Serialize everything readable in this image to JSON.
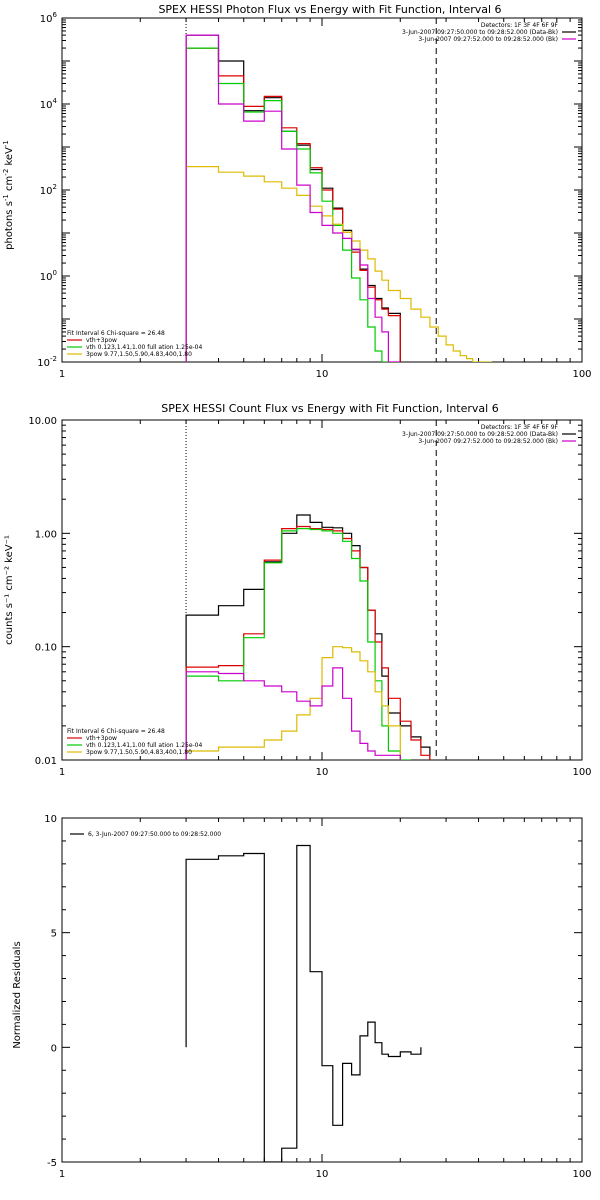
{
  "chart_data": [
    {
      "type": "line",
      "title": "SPEX HESSI Photon Flux vs Energy with Fit Function, Interval 6",
      "ylabel_parts": [
        "photons s",
        "-1",
        " cm",
        "-2",
        " keV",
        "-1"
      ],
      "xscale": "log",
      "yscale": "log",
      "xlim": [
        1,
        100
      ],
      "ylim": [
        0.01,
        1000000
      ],
      "x_ticks": [
        {
          "v": 1,
          "label": "1"
        },
        {
          "v": 10,
          "label": "10"
        },
        {
          "v": 100,
          "label": "100"
        }
      ],
      "y_ticks": [
        {
          "v": 0.01,
          "base": "10",
          "exp": "-2"
        },
        {
          "v": 1,
          "base": "10",
          "exp": "0"
        },
        {
          "v": 100,
          "base": "10",
          "exp": "2"
        },
        {
          "v": 10000,
          "base": "10",
          "exp": "4"
        },
        {
          "v": 1000000,
          "base": "10",
          "exp": "6"
        }
      ],
      "vlines": [
        {
          "x": 3,
          "style": "dotted"
        },
        {
          "x": 27.5,
          "style": "dashed"
        }
      ],
      "legend_topright": [
        {
          "text": "Detectors: 1F 3F 4F 6F 9F",
          "color": ""
        },
        {
          "text": "3-Jun-2007 09:27:50.000 to 09:28:52.000 (Data-Bk)",
          "color": "#000000"
        },
        {
          "text": "3-Jun-2007 09:27:52.000 to 09:28:52.000 (Bk)",
          "color": "#cc00cc"
        }
      ],
      "legend_bottomleft": [
        {
          "text": "Fit Interval 6   Chi-square = 26.48",
          "color": ""
        },
        {
          "text": "vth+3pow",
          "color": "#dd0000"
        },
        {
          "text": "vth 0.123,1.41,1.00  full ation 1.25e-04",
          "color": "#00cc00"
        },
        {
          "text": "3pow 9.77,1.50,5.90,4.83,400,1.80",
          "color": "#ddbb00"
        }
      ],
      "bin_edges": [
        3,
        4,
        5,
        6,
        7,
        8,
        9,
        10,
        11,
        12,
        13,
        14,
        15,
        16,
        17,
        18,
        20,
        22,
        24,
        26,
        28,
        30,
        32,
        34,
        36,
        38,
        40,
        45
      ],
      "series": [
        {
          "name": "Data-Bk",
          "color": "#000000",
          "values": [
            400000,
            100000,
            7000,
            14000,
            2300,
            1100,
            300,
            110,
            38,
            11.5,
            4.1,
            1.45,
            0.6,
            0.3,
            0.18,
            0.135
          ]
        },
        {
          "name": "vth+3pow",
          "color": "#dd0000",
          "values": [
            200000,
            45000,
            8800,
            15000,
            2800,
            1200,
            330,
            100,
            36,
            10.5,
            3.6,
            1.35,
            0.55,
            0.28,
            0.17,
            0.12
          ]
        },
        {
          "name": "vth",
          "color": "#00cc00",
          "values": [
            200000,
            30000,
            6500,
            12000,
            2300,
            900,
            250,
            55,
            15,
            4.0,
            0.9,
            0.28,
            0.065,
            0.018,
            0.008
          ]
        },
        {
          "name": "3pow",
          "color": "#ddbb00",
          "values": [
            350,
            260,
            210,
            155,
            110,
            75,
            42,
            25,
            16,
            10.5,
            6.5,
            4.0,
            2.5,
            1.3,
            0.8,
            0.46,
            0.3,
            0.17,
            0.11,
            0.065,
            0.04,
            0.025,
            0.018,
            0.014,
            0.012,
            0.01,
            0.008
          ]
        },
        {
          "name": "Bk",
          "color": "#cc00cc",
          "values": [
            400000,
            10000,
            4000,
            6800,
            900,
            130,
            30,
            15,
            10,
            7.5,
            4.2,
            1.8,
            0.3,
            0.11,
            0.05,
            0.005
          ]
        }
      ]
    },
    {
      "type": "line",
      "title": "SPEX HESSI Count Flux vs Energy with Fit Function, Interval 6",
      "ylabel": "counts s⁻¹ cm⁻² keV⁻¹",
      "xscale": "log",
      "yscale": "log",
      "xlim": [
        1,
        100
      ],
      "ylim": [
        0.01,
        10
      ],
      "x_ticks": [
        {
          "v": 1,
          "label": "1"
        },
        {
          "v": 10,
          "label": "10"
        },
        {
          "v": 100,
          "label": "100"
        }
      ],
      "y_ticks": [
        {
          "v": 0.01,
          "label": "0.01"
        },
        {
          "v": 0.1,
          "label": "0.10"
        },
        {
          "v": 1,
          "label": "1.00"
        },
        {
          "v": 10,
          "label": "10.00"
        }
      ],
      "vlines": [
        {
          "x": 3,
          "style": "dotted"
        },
        {
          "x": 27.5,
          "style": "dashed"
        }
      ],
      "legend_topright": [
        {
          "text": "Detectors: 1F 3F 4F 6F 9F",
          "color": ""
        },
        {
          "text": "3-Jun-2007 09:27:50.000 to 09:28:52.000 (Data-Bk)",
          "color": "#000000"
        },
        {
          "text": "3-Jun-2007 09:27:52.000 to 09:28:52.000 (Bk)",
          "color": "#cc00cc"
        }
      ],
      "legend_bottomleft": [
        {
          "text": "Fit Interval 6   Chi-square = 26.48",
          "color": ""
        },
        {
          "text": "vth+3pow",
          "color": "#dd0000"
        },
        {
          "text": "vth 0.123,1.41,1.00  full ation 1.25e-04",
          "color": "#00cc00"
        },
        {
          "text": "3pow 9.77,1.50,5.90,4.83,400,1.80",
          "color": "#ddbb00"
        }
      ],
      "bin_edges": [
        3,
        4,
        5,
        6,
        7,
        8,
        9,
        10,
        11,
        12,
        13,
        14,
        15,
        16,
        17,
        18,
        20,
        22,
        24,
        26,
        28,
        30,
        32,
        34,
        36,
        38,
        40,
        45
      ],
      "series": [
        {
          "name": "Data-Bk",
          "color": "#000000",
          "values": [
            0.19,
            0.23,
            0.32,
            0.56,
            1.0,
            1.45,
            1.25,
            1.13,
            1.12,
            1.0,
            0.78,
            0.5,
            0.21,
            0.13,
            0.055,
            0.026,
            0.02,
            0.016,
            0.013
          ]
        },
        {
          "name": "vth+3pow",
          "color": "#dd0000",
          "values": [
            0.066,
            0.068,
            0.13,
            0.58,
            1.1,
            1.15,
            1.1,
            1.08,
            1.05,
            0.9,
            0.7,
            0.5,
            0.21,
            0.11,
            0.065,
            0.035,
            0.022,
            0.015,
            0.011
          ]
        },
        {
          "name": "vth",
          "color": "#00cc00",
          "values": [
            0.055,
            0.05,
            0.12,
            0.55,
            1.05,
            1.1,
            1.08,
            1.05,
            1.0,
            0.85,
            0.6,
            0.38,
            0.11,
            0.05,
            0.02,
            0.012,
            0.006
          ]
        },
        {
          "name": "3pow",
          "color": "#ddbb00",
          "values": [
            0.012,
            0.013,
            0.013,
            0.015,
            0.018,
            0.025,
            0.035,
            0.08,
            0.1,
            0.098,
            0.09,
            0.075,
            0.06,
            0.04,
            0.03,
            0.02
          ]
        },
        {
          "name": "Bk",
          "color": "#cc00cc",
          "values": [
            0.06,
            0.058,
            0.05,
            0.045,
            0.04,
            0.033,
            0.03,
            0.045,
            0.065,
            0.035,
            0.018,
            0.014,
            0.012,
            0.011,
            0.011,
            0.011
          ]
        }
      ]
    },
    {
      "type": "line",
      "title": "",
      "ylabel": "Normalized Residuals",
      "xscale": "log",
      "yscale": "linear",
      "xlim": [
        1,
        100
      ],
      "ylim": [
        -5,
        10
      ],
      "x_ticks": [
        {
          "v": 1,
          "label": "1"
        },
        {
          "v": 10,
          "label": "10"
        },
        {
          "v": 100,
          "label": "100"
        }
      ],
      "y_ticks": [
        {
          "v": -5,
          "label": "-5"
        },
        {
          "v": 0,
          "label": "0"
        },
        {
          "v": 5,
          "label": "5"
        },
        {
          "v": 10,
          "label": "10"
        }
      ],
      "legend_topleft": [
        {
          "text": "6, 3-Jun-2007 09:27:50.000 to 09:28:52.000",
          "color": "#000000"
        }
      ],
      "bin_edges": [
        3,
        4,
        5,
        6,
        7,
        8,
        9,
        10,
        11,
        12,
        13,
        14,
        15,
        16,
        17,
        18,
        20,
        22,
        24,
        26,
        28
      ],
      "series": [
        {
          "name": "6, 3-Jun-2007 09:27:50.000 to 09:28:52.000",
          "color": "#000000",
          "values": [
            8.2,
            8.35,
            8.45,
            -5.1,
            -4.4,
            8.8,
            3.3,
            -0.8,
            -3.4,
            -0.7,
            -1.2,
            0.5,
            1.1,
            0.2,
            -0.3,
            -0.4,
            -0.2,
            -0.3
          ]
        }
      ]
    }
  ]
}
